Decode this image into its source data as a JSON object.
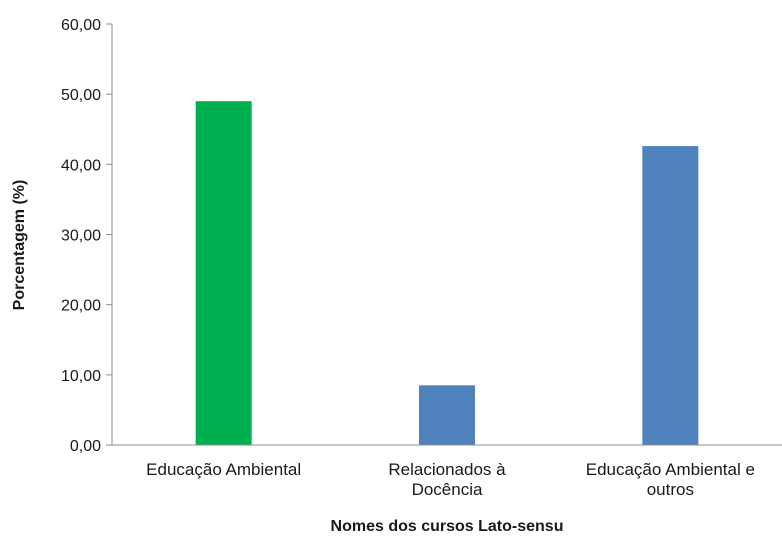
{
  "chart_data": {
    "type": "bar",
    "title": "",
    "xlabel": "Nomes dos cursos Lato-sensu",
    "ylabel": "Porcentagem (%)",
    "ylim": [
      0,
      60
    ],
    "yticks": [
      "0,00",
      "10,00",
      "20,00",
      "30,00",
      "40,00",
      "50,00",
      "60,00"
    ],
    "grid": false,
    "categories": [
      [
        "Educação Ambiental"
      ],
      [
        "Relacionados à",
        "Docência"
      ],
      [
        "Educação Ambiental e",
        "outros"
      ]
    ],
    "values": [
      49.0,
      8.5,
      42.6
    ],
    "colors": [
      "#00b050",
      "#4f81bd",
      "#4f81bd"
    ]
  }
}
